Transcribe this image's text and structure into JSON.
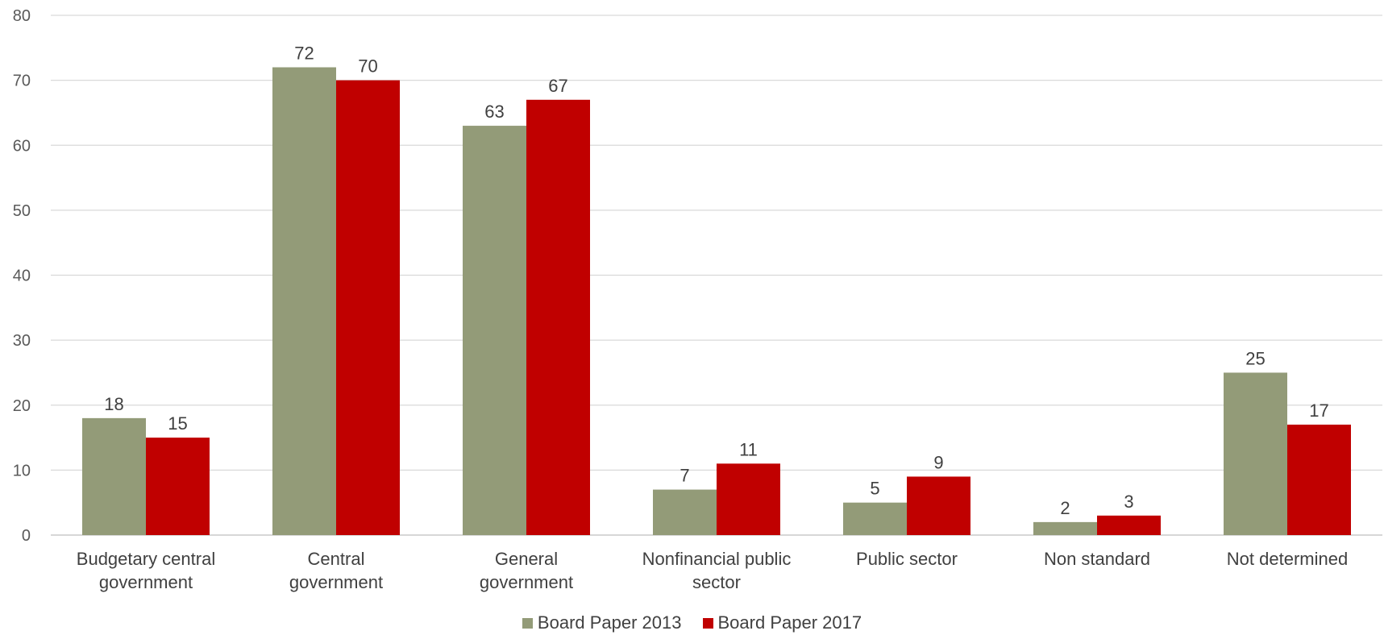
{
  "chart_data": {
    "type": "bar",
    "title": "",
    "xlabel": "",
    "ylabel": "",
    "ylim": [
      0,
      80
    ],
    "yticks": [
      0,
      10,
      20,
      30,
      40,
      50,
      60,
      70,
      80
    ],
    "grid": true,
    "legend_position": "bottom",
    "categories": [
      [
        "Budgetary central",
        "government"
      ],
      [
        "Central",
        "government"
      ],
      [
        "General",
        "government"
      ],
      [
        "Nonfinancial public",
        "sector"
      ],
      [
        "Public sector"
      ],
      [
        "Non standard"
      ],
      [
        "Not determined"
      ]
    ],
    "series": [
      {
        "name": "Board Paper 2013",
        "color": "#939b78",
        "values": [
          18,
          72,
          63,
          7,
          5,
          2,
          25
        ]
      },
      {
        "name": "Board Paper 2017",
        "color": "#c00000",
        "values": [
          15,
          70,
          67,
          11,
          9,
          3,
          17
        ]
      }
    ],
    "data_labels": true
  }
}
